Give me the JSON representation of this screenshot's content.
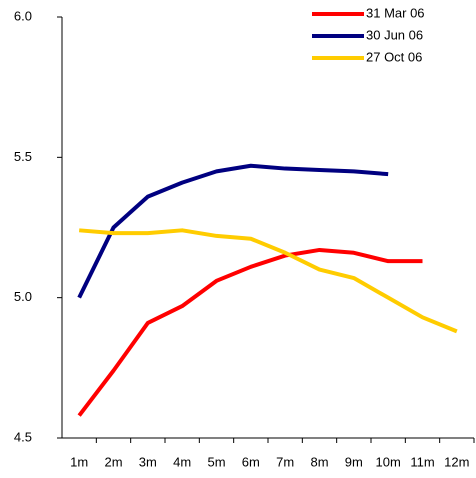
{
  "chart_data": {
    "type": "line",
    "categories": [
      "1m",
      "2m",
      "3m",
      "4m",
      "5m",
      "6m",
      "7m",
      "8m",
      "9m",
      "10m",
      "11m",
      "12m"
    ],
    "series": [
      {
        "name": "31 Mar 06",
        "color": "#ff0000",
        "values": [
          4.58,
          4.74,
          4.91,
          4.97,
          5.06,
          5.11,
          5.15,
          5.17,
          5.16,
          5.13,
          5.13,
          null
        ]
      },
      {
        "name": "30 Jun 06",
        "color": "#000080",
        "values": [
          5.0,
          5.25,
          5.36,
          5.41,
          5.45,
          5.47,
          5.46,
          5.455,
          5.45,
          5.44,
          null,
          null
        ]
      },
      {
        "name": "27 Oct 06",
        "color": "#ffcc00",
        "values": [
          5.24,
          5.23,
          5.23,
          5.24,
          5.22,
          5.21,
          5.16,
          5.1,
          5.07,
          5.0,
          4.93,
          4.88
        ]
      }
    ],
    "ylim": [
      4.5,
      6.0
    ],
    "yticks": [
      4.5,
      {
        "value": 5,
        "label": "5.0"
      },
      5.5,
      {
        "value": 6,
        "label": "6.0"
      }
    ],
    "legend": "top-right"
  }
}
